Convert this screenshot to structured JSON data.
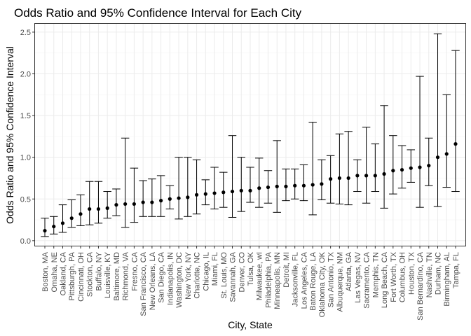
{
  "chart_data": {
    "type": "scatter",
    "title": "Odds Ratio and 95% Confidence Interval for Each City",
    "xlabel": "City, State",
    "ylabel": "Odds Ratio and 95% Confidence Interval",
    "ylim": [
      -0.06,
      2.6
    ],
    "yticks": [
      0.0,
      0.5,
      1.0,
      1.5,
      2.0,
      2.5
    ],
    "ytick_labels": [
      "0.0",
      "0.5",
      "1.0",
      "1.5",
      "2.0",
      "2.5"
    ],
    "grid": true,
    "legend": "none",
    "categories": [
      "Boston, MA",
      "Omaha, NE",
      "Oakland, CA",
      "Pittsburgh, PA",
      "Cincinnati, OH",
      "Stockton, CA",
      "Buffalo, NY",
      "Louisville, KY",
      "Baltimore, MD",
      "Richmond, VA",
      "Fresno, CA",
      "San Francisco, CA",
      "New Orleans, LA",
      "San Diego, CA",
      "Indianapolis, IN",
      "Washington, DC",
      "New York, NY",
      "Charlotte, NC",
      "Chicago, IL",
      "Miami, FL",
      "St. Louis, MO",
      "Savannah, GA",
      "Denver, CO",
      "Tulsa, OK",
      "Milwaukee, wI",
      "Philadelphia, PA",
      "Minneapolis, MN",
      "Detroit, MI",
      "Jacksonville, FL",
      "Los Angeles, CA",
      "Baton Rouge, LA",
      "Oklahoma City, OK",
      "San Antonio, TX",
      "Albuquerque, NM",
      "Atlanta, GA",
      "Las Vegas, NV",
      "Sacramento, CA",
      "Memphis, TN",
      "Long Beach, CA",
      "Fort Worth, TX",
      "Columbus, OH",
      "Houston, TX",
      "San Bernardino, CA",
      "Nashville, TN",
      "Durham, NC",
      "Birmingham, AL",
      "Tampa, FL"
    ],
    "estimate": [
      0.12,
      0.17,
      0.21,
      0.27,
      0.32,
      0.38,
      0.38,
      0.39,
      0.43,
      0.44,
      0.44,
      0.46,
      0.46,
      0.48,
      0.5,
      0.51,
      0.52,
      0.55,
      0.56,
      0.57,
      0.58,
      0.59,
      0.6,
      0.6,
      0.63,
      0.64,
      0.65,
      0.65,
      0.66,
      0.66,
      0.67,
      0.68,
      0.74,
      0.75,
      0.75,
      0.78,
      0.78,
      0.78,
      0.8,
      0.84,
      0.85,
      0.87,
      0.88,
      0.9,
      1.0,
      1.04,
      1.16
    ],
    "ci_low": [
      0.05,
      0.08,
      0.1,
      0.16,
      0.18,
      0.19,
      0.21,
      0.27,
      0.3,
      0.16,
      0.22,
      0.29,
      0.29,
      0.29,
      0.38,
      0.26,
      0.29,
      0.32,
      0.43,
      0.38,
      0.4,
      0.28,
      0.35,
      0.46,
      0.4,
      0.45,
      0.34,
      0.48,
      0.5,
      0.48,
      0.31,
      0.49,
      0.45,
      0.44,
      0.43,
      0.59,
      0.45,
      0.59,
      0.39,
      0.56,
      0.63,
      0.7,
      0.4,
      0.66,
      0.41,
      0.64,
      0.59
    ],
    "ci_high": [
      0.27,
      0.29,
      0.43,
      0.49,
      0.55,
      0.71,
      0.71,
      0.59,
      0.62,
      1.23,
      0.87,
      0.72,
      0.74,
      0.78,
      0.66,
      1.0,
      1.0,
      0.97,
      0.73,
      0.88,
      0.82,
      1.26,
      1.0,
      0.88,
      0.99,
      0.84,
      1.2,
      0.86,
      0.86,
      0.91,
      1.42,
      0.97,
      1.02,
      1.28,
      1.31,
      0.97,
      1.36,
      1.16,
      1.62,
      1.26,
      1.14,
      1.09,
      1.97,
      1.23,
      2.48,
      1.75,
      2.28
    ]
  }
}
